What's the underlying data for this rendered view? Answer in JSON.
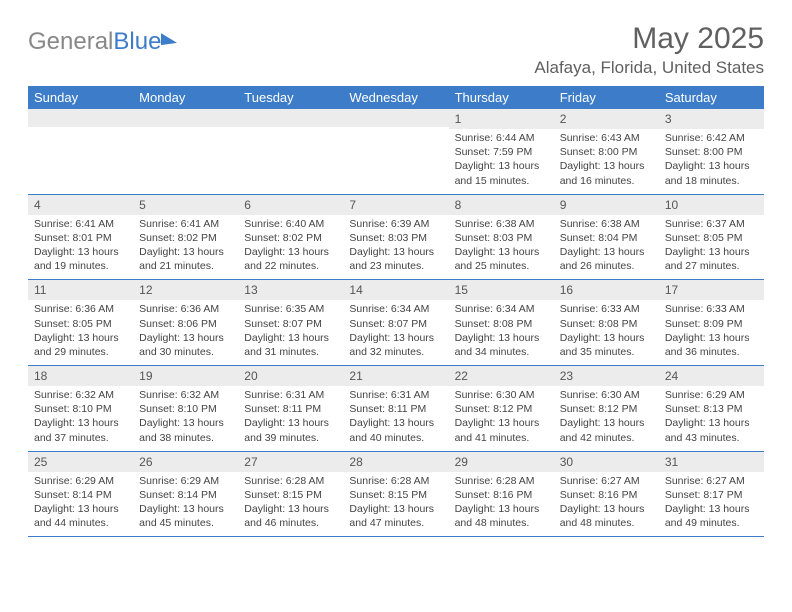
{
  "brand_part1": "General",
  "brand_part2": "Blue",
  "month_title": "May 2025",
  "location": "Alafaya, Florida, United States",
  "colors": {
    "header_bg": "#3d7cc9",
    "header_text": "#ffffff",
    "daynum_bg": "#ececec",
    "body_text": "#444444",
    "title_text": "#606060",
    "rule": "#3d7cc9"
  },
  "day_names": [
    "Sunday",
    "Monday",
    "Tuesday",
    "Wednesday",
    "Thursday",
    "Friday",
    "Saturday"
  ],
  "weeks": [
    [
      {
        "n": "",
        "l1": "",
        "l2": "",
        "l3": "",
        "l4": ""
      },
      {
        "n": "",
        "l1": "",
        "l2": "",
        "l3": "",
        "l4": ""
      },
      {
        "n": "",
        "l1": "",
        "l2": "",
        "l3": "",
        "l4": ""
      },
      {
        "n": "",
        "l1": "",
        "l2": "",
        "l3": "",
        "l4": ""
      },
      {
        "n": "1",
        "l1": "Sunrise: 6:44 AM",
        "l2": "Sunset: 7:59 PM",
        "l3": "Daylight: 13 hours",
        "l4": "and 15 minutes."
      },
      {
        "n": "2",
        "l1": "Sunrise: 6:43 AM",
        "l2": "Sunset: 8:00 PM",
        "l3": "Daylight: 13 hours",
        "l4": "and 16 minutes."
      },
      {
        "n": "3",
        "l1": "Sunrise: 6:42 AM",
        "l2": "Sunset: 8:00 PM",
        "l3": "Daylight: 13 hours",
        "l4": "and 18 minutes."
      }
    ],
    [
      {
        "n": "4",
        "l1": "Sunrise: 6:41 AM",
        "l2": "Sunset: 8:01 PM",
        "l3": "Daylight: 13 hours",
        "l4": "and 19 minutes."
      },
      {
        "n": "5",
        "l1": "Sunrise: 6:41 AM",
        "l2": "Sunset: 8:02 PM",
        "l3": "Daylight: 13 hours",
        "l4": "and 21 minutes."
      },
      {
        "n": "6",
        "l1": "Sunrise: 6:40 AM",
        "l2": "Sunset: 8:02 PM",
        "l3": "Daylight: 13 hours",
        "l4": "and 22 minutes."
      },
      {
        "n": "7",
        "l1": "Sunrise: 6:39 AM",
        "l2": "Sunset: 8:03 PM",
        "l3": "Daylight: 13 hours",
        "l4": "and 23 minutes."
      },
      {
        "n": "8",
        "l1": "Sunrise: 6:38 AM",
        "l2": "Sunset: 8:03 PM",
        "l3": "Daylight: 13 hours",
        "l4": "and 25 minutes."
      },
      {
        "n": "9",
        "l1": "Sunrise: 6:38 AM",
        "l2": "Sunset: 8:04 PM",
        "l3": "Daylight: 13 hours",
        "l4": "and 26 minutes."
      },
      {
        "n": "10",
        "l1": "Sunrise: 6:37 AM",
        "l2": "Sunset: 8:05 PM",
        "l3": "Daylight: 13 hours",
        "l4": "and 27 minutes."
      }
    ],
    [
      {
        "n": "11",
        "l1": "Sunrise: 6:36 AM",
        "l2": "Sunset: 8:05 PM",
        "l3": "Daylight: 13 hours",
        "l4": "and 29 minutes."
      },
      {
        "n": "12",
        "l1": "Sunrise: 6:36 AM",
        "l2": "Sunset: 8:06 PM",
        "l3": "Daylight: 13 hours",
        "l4": "and 30 minutes."
      },
      {
        "n": "13",
        "l1": "Sunrise: 6:35 AM",
        "l2": "Sunset: 8:07 PM",
        "l3": "Daylight: 13 hours",
        "l4": "and 31 minutes."
      },
      {
        "n": "14",
        "l1": "Sunrise: 6:34 AM",
        "l2": "Sunset: 8:07 PM",
        "l3": "Daylight: 13 hours",
        "l4": "and 32 minutes."
      },
      {
        "n": "15",
        "l1": "Sunrise: 6:34 AM",
        "l2": "Sunset: 8:08 PM",
        "l3": "Daylight: 13 hours",
        "l4": "and 34 minutes."
      },
      {
        "n": "16",
        "l1": "Sunrise: 6:33 AM",
        "l2": "Sunset: 8:08 PM",
        "l3": "Daylight: 13 hours",
        "l4": "and 35 minutes."
      },
      {
        "n": "17",
        "l1": "Sunrise: 6:33 AM",
        "l2": "Sunset: 8:09 PM",
        "l3": "Daylight: 13 hours",
        "l4": "and 36 minutes."
      }
    ],
    [
      {
        "n": "18",
        "l1": "Sunrise: 6:32 AM",
        "l2": "Sunset: 8:10 PM",
        "l3": "Daylight: 13 hours",
        "l4": "and 37 minutes."
      },
      {
        "n": "19",
        "l1": "Sunrise: 6:32 AM",
        "l2": "Sunset: 8:10 PM",
        "l3": "Daylight: 13 hours",
        "l4": "and 38 minutes."
      },
      {
        "n": "20",
        "l1": "Sunrise: 6:31 AM",
        "l2": "Sunset: 8:11 PM",
        "l3": "Daylight: 13 hours",
        "l4": "and 39 minutes."
      },
      {
        "n": "21",
        "l1": "Sunrise: 6:31 AM",
        "l2": "Sunset: 8:11 PM",
        "l3": "Daylight: 13 hours",
        "l4": "and 40 minutes."
      },
      {
        "n": "22",
        "l1": "Sunrise: 6:30 AM",
        "l2": "Sunset: 8:12 PM",
        "l3": "Daylight: 13 hours",
        "l4": "and 41 minutes."
      },
      {
        "n": "23",
        "l1": "Sunrise: 6:30 AM",
        "l2": "Sunset: 8:12 PM",
        "l3": "Daylight: 13 hours",
        "l4": "and 42 minutes."
      },
      {
        "n": "24",
        "l1": "Sunrise: 6:29 AM",
        "l2": "Sunset: 8:13 PM",
        "l3": "Daylight: 13 hours",
        "l4": "and 43 minutes."
      }
    ],
    [
      {
        "n": "25",
        "l1": "Sunrise: 6:29 AM",
        "l2": "Sunset: 8:14 PM",
        "l3": "Daylight: 13 hours",
        "l4": "and 44 minutes."
      },
      {
        "n": "26",
        "l1": "Sunrise: 6:29 AM",
        "l2": "Sunset: 8:14 PM",
        "l3": "Daylight: 13 hours",
        "l4": "and 45 minutes."
      },
      {
        "n": "27",
        "l1": "Sunrise: 6:28 AM",
        "l2": "Sunset: 8:15 PM",
        "l3": "Daylight: 13 hours",
        "l4": "and 46 minutes."
      },
      {
        "n": "28",
        "l1": "Sunrise: 6:28 AM",
        "l2": "Sunset: 8:15 PM",
        "l3": "Daylight: 13 hours",
        "l4": "and 47 minutes."
      },
      {
        "n": "29",
        "l1": "Sunrise: 6:28 AM",
        "l2": "Sunset: 8:16 PM",
        "l3": "Daylight: 13 hours",
        "l4": "and 48 minutes."
      },
      {
        "n": "30",
        "l1": "Sunrise: 6:27 AM",
        "l2": "Sunset: 8:16 PM",
        "l3": "Daylight: 13 hours",
        "l4": "and 48 minutes."
      },
      {
        "n": "31",
        "l1": "Sunrise: 6:27 AM",
        "l2": "Sunset: 8:17 PM",
        "l3": "Daylight: 13 hours",
        "l4": "and 49 minutes."
      }
    ]
  ]
}
